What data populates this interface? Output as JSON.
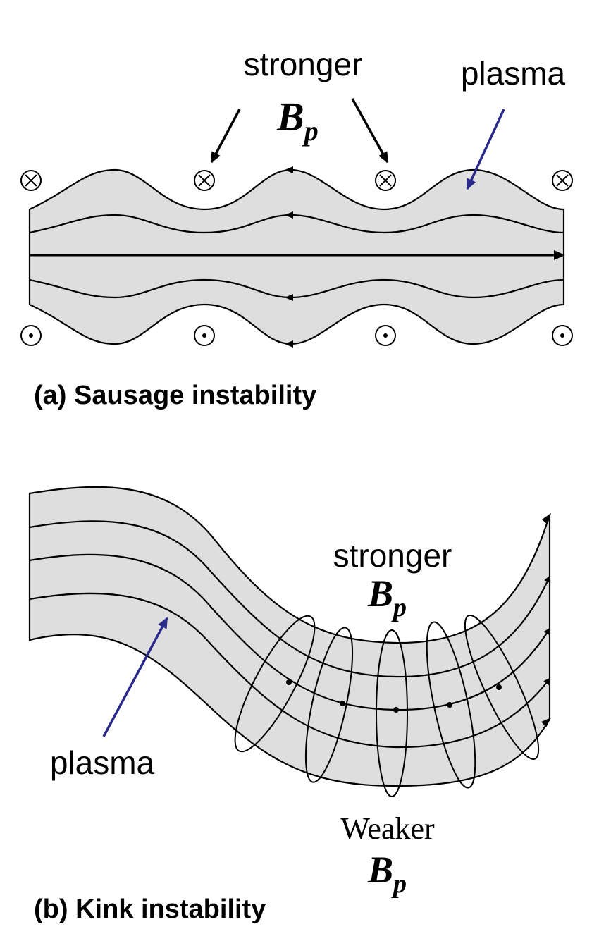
{
  "panel_a": {
    "label_stronger": "stronger",
    "label_plasma": "plasma",
    "bp_symbol": "B",
    "bp_subscript": "p",
    "caption": "(a) Sausage instability",
    "current_in_symbol": "⊗",
    "current_out_symbol": "⊙",
    "plasma_arrow_color": "#2a2a8c"
  },
  "panel_b": {
    "label_stronger": "stronger",
    "label_weaker": "Weaker",
    "label_plasma": "plasma",
    "bp_symbol": "B",
    "bp_subscript": "p",
    "caption": "(b) Kink instability",
    "plasma_arrow_color": "#2a2a8c"
  },
  "colors": {
    "plasma_fill": "#dedede",
    "line": "#000000"
  }
}
